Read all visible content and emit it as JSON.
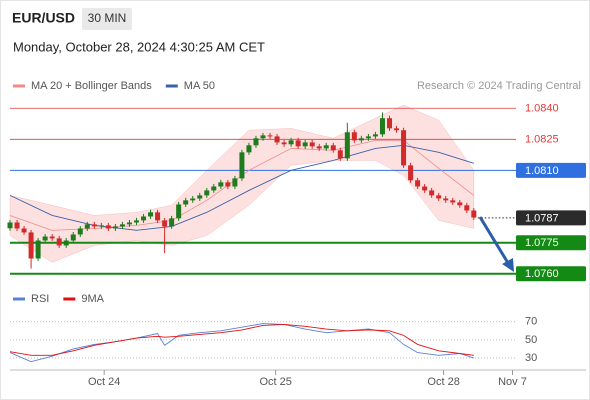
{
  "header": {
    "symbol": "EUR/USD",
    "timeframe": "30 MIN",
    "datetime": "Monday, October 28, 2024 4:30:25 AM CET",
    "credit": "Research © 2024 Trading Central"
  },
  "chart_data": [
    {
      "type": "candlestick",
      "xlim": [
        0,
        72
      ],
      "ylim": [
        1.0757,
        1.0844
      ],
      "up_color": "#1e7b1e",
      "down_color": "#d12a2a",
      "open": [
        1.0782,
        1.07848,
        1.07819,
        1.078,
        1.07674,
        1.07761,
        1.0778,
        1.07771,
        1.07737,
        1.07761,
        1.0779,
        1.07819,
        1.07839,
        1.07829,
        1.07834,
        1.07819,
        1.07829,
        1.07839,
        1.07848,
        1.07858,
        1.07877,
        1.07897,
        1.07858,
        1.07829,
        1.07868,
        1.07935,
        1.07955,
        1.07964,
        1.07979,
        1.08003,
        1.08022,
        1.08042,
        1.08022,
        1.08061,
        1.08187,
        1.08221,
        1.08255,
        1.08269,
        1.08264,
        1.08235,
        1.08226,
        1.08245,
        1.08216,
        1.08235,
        1.08216,
        1.08206,
        1.08221,
        1.08197,
        1.08158,
        1.08284,
        1.08245,
        1.08255,
        1.08264,
        1.08274,
        1.08352,
        1.08303,
        1.08294,
        1.08124,
        1.08052,
        1.08022,
        1.08003,
        1.07979,
        1.07964,
        1.07955,
        1.07945,
        1.07931,
        1.07906
      ],
      "high": [
        1.0786,
        1.0786,
        1.07831,
        1.07812,
        1.07773,
        1.07792,
        1.07792,
        1.07783,
        1.07773,
        1.07802,
        1.07831,
        1.07851,
        1.07851,
        1.07846,
        1.07846,
        1.07841,
        1.07851,
        1.0786,
        1.0787,
        1.07889,
        1.07909,
        1.07909,
        1.0787,
        1.0788,
        1.07947,
        1.07967,
        1.07976,
        1.07991,
        1.08015,
        1.08034,
        1.08054,
        1.08054,
        1.08073,
        1.08199,
        1.08233,
        1.08267,
        1.08281,
        1.08281,
        1.08276,
        1.08247,
        1.08257,
        1.08257,
        1.08247,
        1.08247,
        1.08228,
        1.08233,
        1.08233,
        1.08209,
        1.0833,
        1.08296,
        1.08267,
        1.08276,
        1.08286,
        1.0838,
        1.08364,
        1.08315,
        1.08306,
        1.08136,
        1.08064,
        1.08034,
        1.08015,
        1.07991,
        1.07976,
        1.07967,
        1.07957,
        1.07943,
        1.07918
      ],
      "low": [
        1.07808,
        1.07807,
        1.07788,
        1.07625,
        1.07662,
        1.07749,
        1.07759,
        1.07725,
        1.07725,
        1.07749,
        1.07778,
        1.07807,
        1.07817,
        1.07817,
        1.07807,
        1.07807,
        1.07817,
        1.07827,
        1.07836,
        1.07846,
        1.07865,
        1.07846,
        1.077,
        1.07817,
        1.07856,
        1.07923,
        1.07943,
        1.07952,
        1.07967,
        1.07991,
        1.0801,
        1.0801,
        1.0801,
        1.08049,
        1.08175,
        1.08209,
        1.08243,
        1.08252,
        1.08223,
        1.08214,
        1.08214,
        1.08204,
        1.08204,
        1.08204,
        1.08194,
        1.08194,
        1.08185,
        1.08146,
        1.08146,
        1.08233,
        1.08233,
        1.08243,
        1.08252,
        1.08262,
        1.08291,
        1.08282,
        1.08112,
        1.0804,
        1.0801,
        1.07991,
        1.07967,
        1.07952,
        1.07943,
        1.07933,
        1.07919,
        1.07894,
        1.0786
      ],
      "close": [
        1.07848,
        1.07819,
        1.078,
        1.07674,
        1.07761,
        1.0778,
        1.07771,
        1.07737,
        1.07761,
        1.0779,
        1.07819,
        1.07839,
        1.07829,
        1.07834,
        1.07819,
        1.07829,
        1.07839,
        1.07848,
        1.07858,
        1.07877,
        1.07897,
        1.07858,
        1.07829,
        1.07868,
        1.07935,
        1.07955,
        1.07964,
        1.07979,
        1.08003,
        1.08022,
        1.08042,
        1.08022,
        1.08061,
        1.08187,
        1.08221,
        1.08255,
        1.08269,
        1.08264,
        1.08235,
        1.08226,
        1.08245,
        1.08216,
        1.08235,
        1.08216,
        1.08206,
        1.08221,
        1.08197,
        1.08158,
        1.08284,
        1.08245,
        1.08255,
        1.08264,
        1.08274,
        1.08352,
        1.08303,
        1.08294,
        1.08124,
        1.08052,
        1.08022,
        1.08003,
        1.07979,
        1.07964,
        1.07955,
        1.07945,
        1.07931,
        1.07906,
        1.07872
      ],
      "series": [
        {
          "name": "MA 20 + Bollinger Bands",
          "color": "#f08a8a",
          "band_color": "#fde0e0",
          "x": [
            0,
            6,
            12,
            18,
            23,
            28,
            34,
            40,
            46,
            52,
            56,
            61,
            66
          ],
          "values": [
            1.07882,
            1.0781,
            1.07819,
            1.07834,
            1.07858,
            1.07955,
            1.081,
            1.08206,
            1.08197,
            1.08245,
            1.08245,
            1.0811,
            1.07979
          ],
          "upper": [
            1.07979,
            1.07931,
            1.07882,
            1.07897,
            1.07931,
            1.081,
            1.08294,
            1.08303,
            1.08255,
            1.08352,
            1.08415,
            1.08342,
            1.081
          ],
          "lower": [
            1.07785,
            1.07655,
            1.07737,
            1.07761,
            1.07737,
            1.07785,
            1.07931,
            1.08124,
            1.08148,
            1.08148,
            1.08076,
            1.07858,
            1.07819
          ]
        },
        {
          "name": "MA 50",
          "color": "#3a62a8",
          "x": [
            0,
            6,
            12,
            18,
            23,
            28,
            34,
            40,
            46,
            52,
            56,
            61,
            66
          ],
          "values": [
            1.07979,
            1.07882,
            1.07834,
            1.0781,
            1.07829,
            1.07897,
            1.08003,
            1.081,
            1.08148,
            1.08206,
            1.08221,
            1.08187,
            1.08134
          ]
        }
      ],
      "levels": [
        {
          "value": 1.084,
          "label": "1.0840",
          "color": "#e03a3a",
          "box": false,
          "line": "solid",
          "width": 0.8
        },
        {
          "value": 1.0825,
          "label": "1.0825",
          "color": "#e03a3a",
          "box": false,
          "line": "solid",
          "width": 0.8
        },
        {
          "value": 1.081,
          "label": "1.0810",
          "color": "#2f6fe0",
          "box": true,
          "line": "solid",
          "width": 1
        },
        {
          "value": 1.0787,
          "label": "1.0787",
          "color": "#2b2b2b",
          "box": true,
          "line": "dotted",
          "width": 1
        },
        {
          "value": 1.0775,
          "label": "1.0775",
          "color": "#138a13",
          "box": true,
          "line": "solid",
          "width": 2
        },
        {
          "value": 1.076,
          "label": "1.0760",
          "color": "#138a13",
          "box": true,
          "line": "solid",
          "width": 2
        }
      ]
    },
    {
      "type": "line",
      "xlim": [
        0,
        72
      ],
      "ylim": [
        19,
        94
      ],
      "yticks": [
        30,
        50,
        70
      ],
      "xticks": [
        {
          "value": 13.4,
          "label": "Oct 24"
        },
        {
          "value": 37.8,
          "label": "Oct 25"
        },
        {
          "value": 61.7,
          "label": "Oct 28"
        },
        {
          "value": 71.5,
          "label": "Nov 7"
        }
      ],
      "grid": true,
      "x": [
        0,
        3,
        6,
        9,
        12,
        15,
        18,
        21,
        22,
        24,
        27,
        30,
        33,
        36,
        39,
        42,
        45,
        48,
        51,
        54,
        56,
        58,
        61,
        64,
        66
      ],
      "series": [
        {
          "name": "RSI",
          "color": "#5b7fd6",
          "values": [
            36,
            26,
            32,
            40,
            45,
            48,
            52,
            57,
            44,
            55,
            58,
            60,
            64,
            68,
            67,
            62,
            58,
            60,
            62,
            58,
            45,
            36,
            33,
            35,
            30
          ]
        },
        {
          "name": "9MA",
          "color": "#e01010",
          "values": [
            37,
            33,
            33,
            38,
            44,
            48,
            52,
            54,
            53,
            54,
            56,
            58,
            61,
            66,
            67,
            65,
            62,
            60,
            61,
            60,
            55,
            45,
            38,
            35,
            33
          ]
        }
      ]
    }
  ]
}
